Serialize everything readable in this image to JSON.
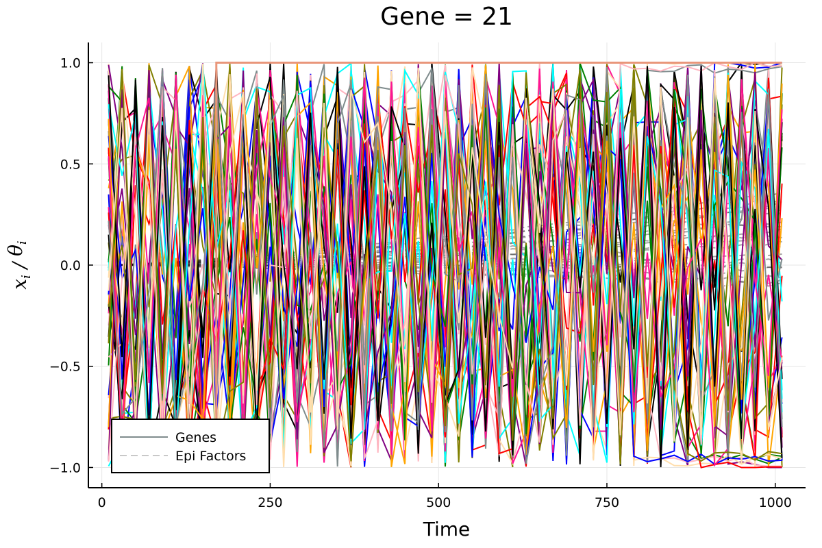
{
  "chart_data": {
    "type": "line",
    "title": "Gene = 21",
    "xlabel": "Time",
    "ylabel": "x_i / θ_i",
    "ylabel_parts": {
      "var": "x",
      "sub1": "i",
      "sep": " / ",
      "theta": "θ",
      "sub2": "i"
    },
    "xlim": [
      -20,
      1045
    ],
    "ylim": [
      -1.1,
      1.1
    ],
    "xticks": [
      0,
      250,
      500,
      750,
      1000
    ],
    "xtick_labels": [
      "0",
      "250",
      "500",
      "750",
      "1000"
    ],
    "yticks": [
      -1.0,
      -0.5,
      0.0,
      0.5,
      1.0
    ],
    "ytick_labels": [
      "−1.0",
      "−0.5",
      "0.0",
      "0.5",
      "1.0"
    ],
    "grid": true,
    "legend_position": "bottom-left",
    "legend": [
      {
        "label": "Genes",
        "style": "solid",
        "color": "#7f8c8d"
      },
      {
        "label": "Epi Factors",
        "style": "dashed",
        "color": "#c8c8c8"
      }
    ],
    "time_start": 10,
    "time_end": 1010,
    "time_step": 20,
    "gene_colors": [
      "#0000ff",
      "#ff0000",
      "#008000",
      "#800080",
      "#ffa500",
      "#00ffff",
      "#ff1493",
      "#ffb6c1",
      "#000000",
      "#7f8c8d",
      "#808000",
      "#ffdead"
    ],
    "series": [
      {
        "name": "Genes",
        "note": "oscillating gene trajectories between -1 and 1 across time 10 to 1010"
      },
      {
        "name": "Epi Factors",
        "note": "dashed trajectories starting near 0.0 and drifting to about -0.1 to 0.35 by time 1010"
      }
    ],
    "epi_factor_endpoints": [
      0.35,
      0.32,
      0.3,
      0.28,
      0.25,
      0.22,
      0.2,
      0.17,
      0.15,
      0.12,
      0.1,
      0.05,
      0.02,
      0.0,
      -0.02,
      -0.05,
      -0.08,
      -0.1
    ],
    "saturated_series": [
      {
        "color": "#e9967a",
        "rise_time": 170,
        "value": 1.0
      }
    ]
  }
}
